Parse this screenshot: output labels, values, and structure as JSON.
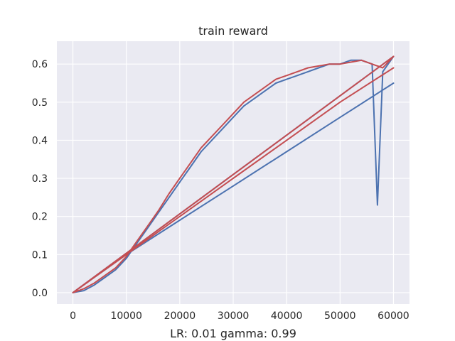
{
  "chart_data": {
    "type": "line",
    "title": "train reward",
    "xlabel": "LR: 0.01 gamma: 0.99",
    "ylabel": "",
    "xlim": [
      -3000,
      63000
    ],
    "ylim": [
      -0.03,
      0.66
    ],
    "xticks": [
      0,
      10000,
      20000,
      30000,
      40000,
      50000,
      60000
    ],
    "xtick_labels": [
      "0",
      "10000",
      "20000",
      "30000",
      "40000",
      "50000",
      "60000"
    ],
    "yticks": [
      0.0,
      0.1,
      0.2,
      0.3,
      0.4,
      0.5,
      0.6
    ],
    "ytick_labels": [
      "0.0",
      "0.1",
      "0.2",
      "0.3",
      "0.4",
      "0.5",
      "0.6"
    ],
    "grid": true,
    "background": "#eaeaf2",
    "series": [
      {
        "color": "#4c72b0",
        "x": [
          0,
          2000,
          4000,
          6000,
          8000,
          10000,
          12000,
          14000,
          16000,
          18000,
          20000,
          22000,
          24000,
          26000,
          28000,
          30000,
          32000,
          34000,
          36000,
          38000,
          40000,
          42000,
          44000,
          46000,
          48000,
          50000,
          52000,
          54000,
          56000,
          57000,
          58000,
          60000,
          0,
          5000,
          10000,
          20000,
          30000,
          40000,
          50000,
          60000
        ],
        "values": [
          0.0,
          0.005,
          0.02,
          0.04,
          0.06,
          0.09,
          0.13,
          0.17,
          0.21,
          0.25,
          0.29,
          0.33,
          0.37,
          0.4,
          0.43,
          0.46,
          0.49,
          0.51,
          0.53,
          0.55,
          0.56,
          0.57,
          0.58,
          0.59,
          0.6,
          0.6,
          0.61,
          0.61,
          0.6,
          0.23,
          0.58,
          0.62,
          0.0,
          0.05,
          0.1,
          0.19,
          0.28,
          0.37,
          0.46,
          0.55
        ]
      },
      {
        "color": "#c44e52",
        "x": [
          0,
          2000,
          4000,
          6000,
          8000,
          10000,
          12000,
          14000,
          16000,
          18000,
          20000,
          22000,
          24000,
          26000,
          28000,
          30000,
          32000,
          34000,
          36000,
          38000,
          40000,
          42000,
          44000,
          46000,
          48000,
          50000,
          52000,
          54000,
          56000,
          58000,
          60000,
          0,
          10000,
          20000,
          30000,
          40000,
          50000,
          60000
        ],
        "values": [
          0.0,
          0.01,
          0.025,
          0.045,
          0.065,
          0.095,
          0.135,
          0.175,
          0.215,
          0.26,
          0.3,
          0.34,
          0.38,
          0.41,
          0.44,
          0.47,
          0.5,
          0.52,
          0.54,
          0.56,
          0.57,
          0.58,
          0.59,
          0.595,
          0.6,
          0.6,
          0.605,
          0.61,
          0.6,
          0.59,
          0.62,
          0.0,
          0.1,
          0.2,
          0.3,
          0.4,
          0.5,
          0.59
        ]
      }
    ]
  }
}
